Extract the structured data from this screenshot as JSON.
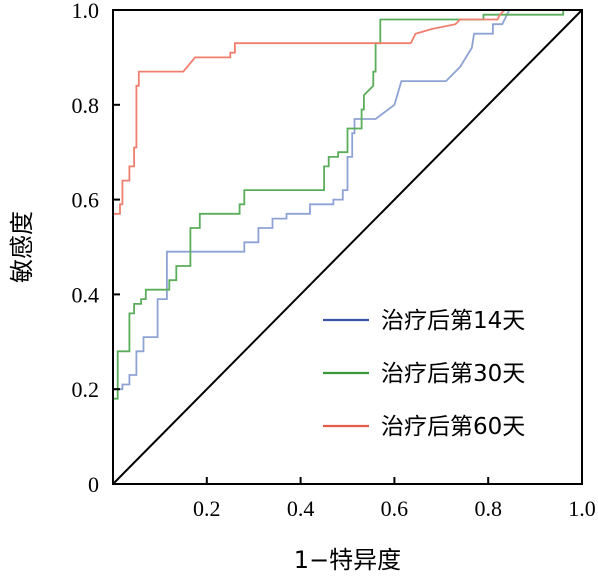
{
  "chart_data": {
    "type": "line",
    "title": "",
    "xlabel": "1−特异度",
    "ylabel": "敏感度",
    "xlim": [
      0,
      1
    ],
    "ylim": [
      0,
      1
    ],
    "x_ticks": [
      "0.2",
      "0.4",
      "0.6",
      "0.8",
      "1.0"
    ],
    "y_ticks": [
      "0",
      "0.2",
      "0.4",
      "0.6",
      "0.8",
      "1.0"
    ],
    "grid": false,
    "legend_position": "bottom-right",
    "reference_line": {
      "from": [
        0,
        0
      ],
      "to": [
        1,
        1
      ],
      "color": "#000000"
    },
    "series": [
      {
        "name": "治疗后第14天",
        "color": "#8ea2d4",
        "legend_color": "#3a56a5",
        "points": [
          [
            0,
            0.2
          ],
          [
            0.02,
            0.2
          ],
          [
            0.02,
            0.21
          ],
          [
            0.035,
            0.21
          ],
          [
            0.035,
            0.23
          ],
          [
            0.05,
            0.23
          ],
          [
            0.05,
            0.28
          ],
          [
            0.065,
            0.28
          ],
          [
            0.065,
            0.31
          ],
          [
            0.095,
            0.31
          ],
          [
            0.095,
            0.39
          ],
          [
            0.115,
            0.39
          ],
          [
            0.115,
            0.49
          ],
          [
            0.28,
            0.49
          ],
          [
            0.28,
            0.51
          ],
          [
            0.31,
            0.51
          ],
          [
            0.31,
            0.54
          ],
          [
            0.34,
            0.54
          ],
          [
            0.34,
            0.56
          ],
          [
            0.37,
            0.56
          ],
          [
            0.37,
            0.57
          ],
          [
            0.42,
            0.57
          ],
          [
            0.42,
            0.59
          ],
          [
            0.47,
            0.59
          ],
          [
            0.47,
            0.6
          ],
          [
            0.49,
            0.6
          ],
          [
            0.49,
            0.62
          ],
          [
            0.5,
            0.62
          ],
          [
            0.5,
            0.69
          ],
          [
            0.51,
            0.69
          ],
          [
            0.51,
            0.74
          ],
          [
            0.515,
            0.74
          ],
          [
            0.515,
            0.77
          ],
          [
            0.56,
            0.77
          ],
          [
            0.6,
            0.8
          ],
          [
            0.615,
            0.85
          ],
          [
            0.71,
            0.85
          ],
          [
            0.74,
            0.88
          ],
          [
            0.765,
            0.92
          ],
          [
            0.77,
            0.95
          ],
          [
            0.81,
            0.95
          ],
          [
            0.81,
            0.97
          ],
          [
            0.83,
            0.97
          ],
          [
            0.845,
            1.0
          ],
          [
            0.99,
            1.0
          ]
        ]
      },
      {
        "name": "治疗后第30天",
        "color": "#5aae5a",
        "legend_color": "#3a9a3a",
        "points": [
          [
            0,
            0.18
          ],
          [
            0.01,
            0.18
          ],
          [
            0.01,
            0.28
          ],
          [
            0.035,
            0.28
          ],
          [
            0.035,
            0.36
          ],
          [
            0.045,
            0.36
          ],
          [
            0.045,
            0.38
          ],
          [
            0.06,
            0.38
          ],
          [
            0.06,
            0.39
          ],
          [
            0.07,
            0.39
          ],
          [
            0.07,
            0.41
          ],
          [
            0.12,
            0.41
          ],
          [
            0.12,
            0.43
          ],
          [
            0.135,
            0.43
          ],
          [
            0.135,
            0.46
          ],
          [
            0.165,
            0.46
          ],
          [
            0.165,
            0.54
          ],
          [
            0.185,
            0.54
          ],
          [
            0.185,
            0.57
          ],
          [
            0.27,
            0.57
          ],
          [
            0.27,
            0.59
          ],
          [
            0.28,
            0.59
          ],
          [
            0.28,
            0.62
          ],
          [
            0.45,
            0.62
          ],
          [
            0.45,
            0.67
          ],
          [
            0.46,
            0.67
          ],
          [
            0.46,
            0.69
          ],
          [
            0.48,
            0.69
          ],
          [
            0.48,
            0.7
          ],
          [
            0.5,
            0.7
          ],
          [
            0.5,
            0.75
          ],
          [
            0.53,
            0.75
          ],
          [
            0.53,
            0.79
          ],
          [
            0.535,
            0.79
          ],
          [
            0.535,
            0.82
          ],
          [
            0.555,
            0.84
          ],
          [
            0.555,
            0.87
          ],
          [
            0.56,
            0.87
          ],
          [
            0.56,
            0.93
          ],
          [
            0.57,
            0.93
          ],
          [
            0.57,
            0.98
          ],
          [
            0.79,
            0.98
          ],
          [
            0.79,
            0.99
          ],
          [
            0.96,
            0.99
          ],
          [
            0.96,
            1.0
          ],
          [
            0.99,
            1.0
          ]
        ]
      },
      {
        "name": "治疗后第60天",
        "color": "#ef7f6e",
        "legend_color": "#e45c47",
        "points": [
          [
            0,
            0.57
          ],
          [
            0.015,
            0.57
          ],
          [
            0.015,
            0.59
          ],
          [
            0.02,
            0.59
          ],
          [
            0.02,
            0.64
          ],
          [
            0.035,
            0.64
          ],
          [
            0.035,
            0.67
          ],
          [
            0.045,
            0.67
          ],
          [
            0.045,
            0.71
          ],
          [
            0.05,
            0.71
          ],
          [
            0.05,
            0.84
          ],
          [
            0.055,
            0.84
          ],
          [
            0.055,
            0.87
          ],
          [
            0.15,
            0.87
          ],
          [
            0.175,
            0.9
          ],
          [
            0.25,
            0.9
          ],
          [
            0.25,
            0.91
          ],
          [
            0.26,
            0.91
          ],
          [
            0.26,
            0.93
          ],
          [
            0.635,
            0.93
          ],
          [
            0.645,
            0.95
          ],
          [
            0.68,
            0.96
          ],
          [
            0.73,
            0.97
          ],
          [
            0.74,
            0.98
          ],
          [
            0.82,
            0.98
          ],
          [
            0.825,
            0.99
          ],
          [
            0.835,
            1.0
          ],
          [
            0.99,
            1.0
          ]
        ]
      }
    ]
  }
}
